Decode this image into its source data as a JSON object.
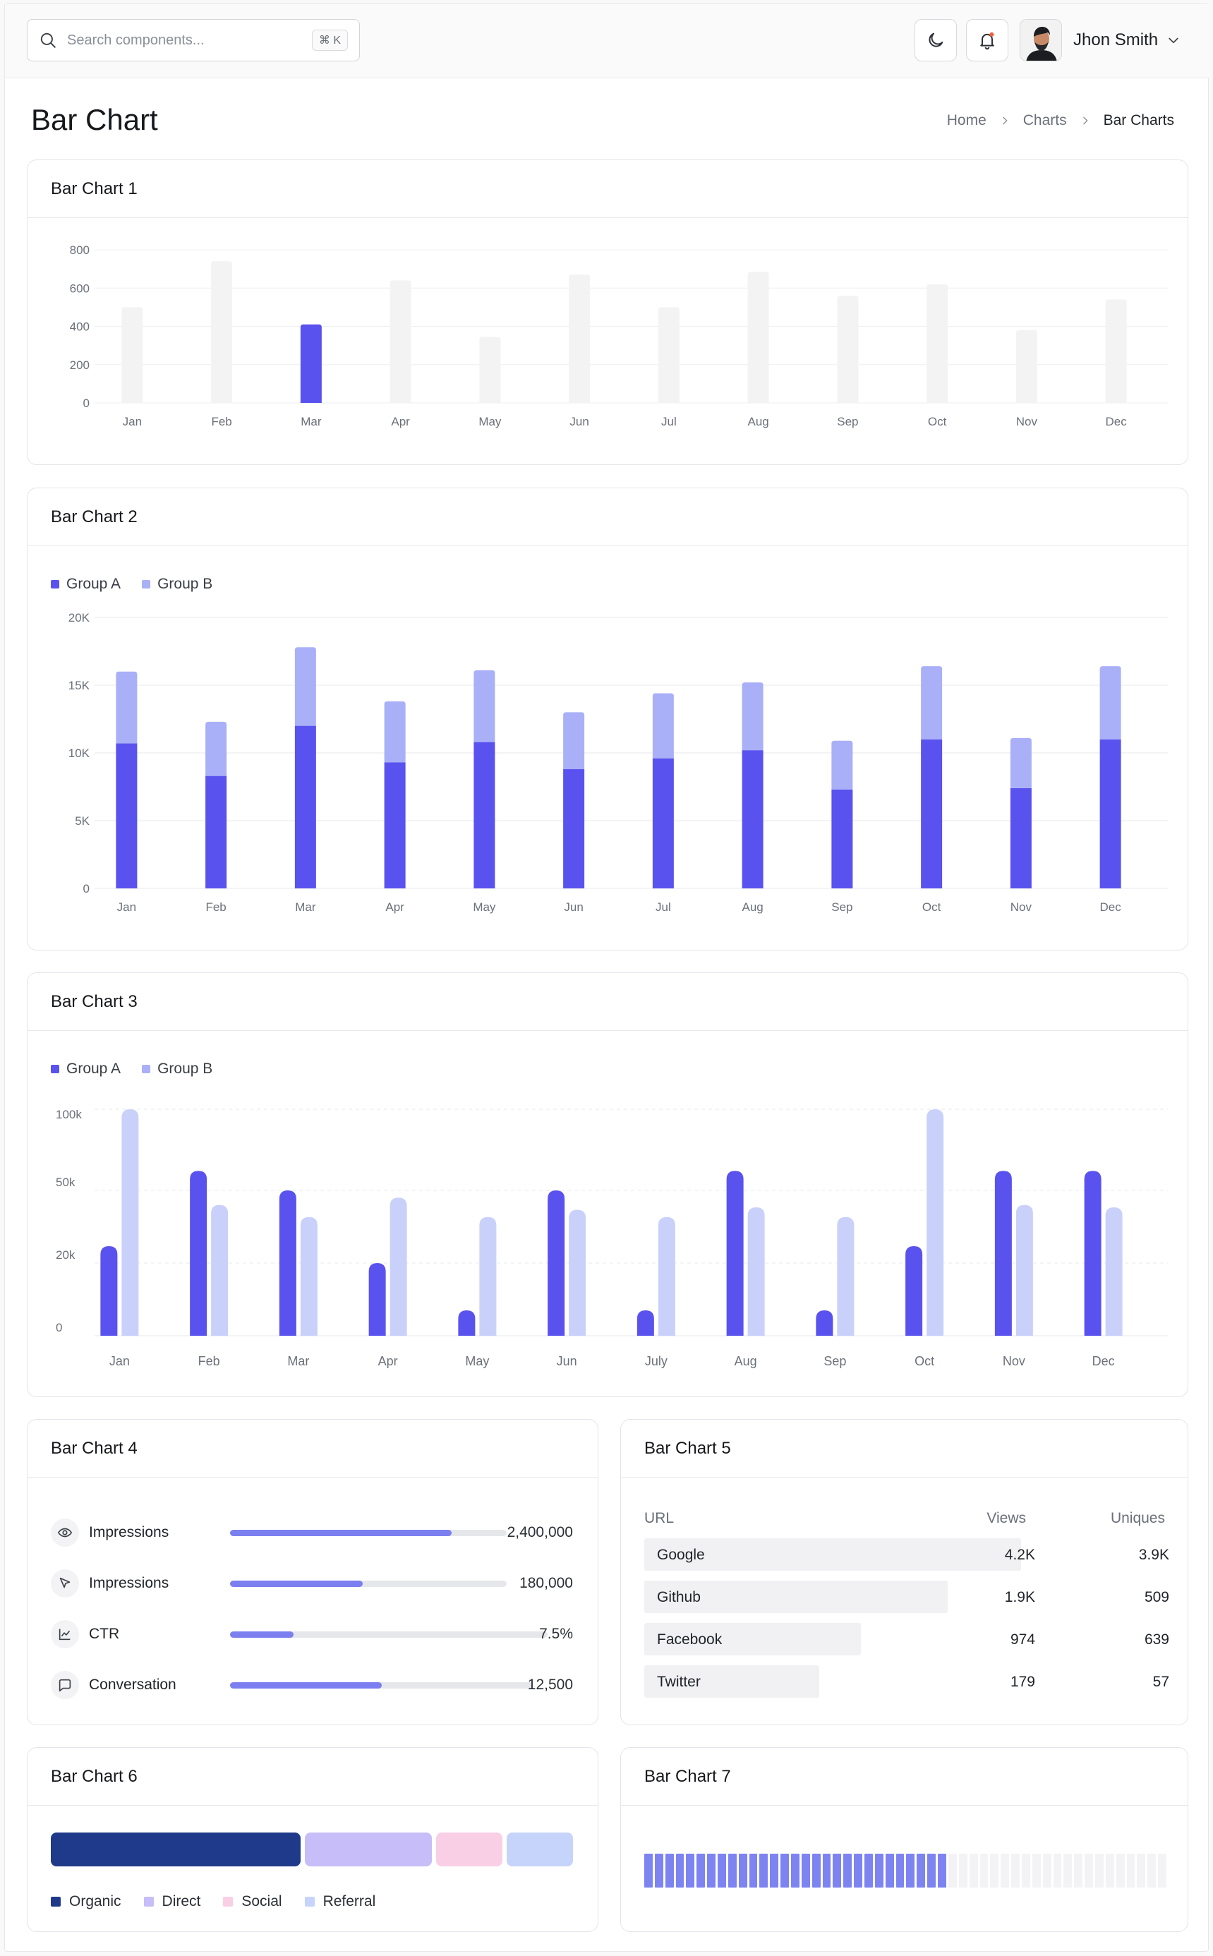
{
  "colors": {
    "primary": "#5a52ee",
    "light": "#a9b0f8",
    "lighter": "#c9d1fb",
    "muted": "#f3f3f4",
    "navy": "#1f3a8a",
    "lavender": "#c7bdf8",
    "pink": "#f9cfe6",
    "sky": "#c6d4fb"
  },
  "header": {
    "search_placeholder": "Search components...",
    "search_shortcut": "⌘ K",
    "theme_icon": "moon-icon",
    "notification_icon": "bell-icon",
    "user_name": "Jhon Smith"
  },
  "page": {
    "title": "Bar Chart"
  },
  "breadcrumb": {
    "home": "Home",
    "charts": "Charts",
    "current": "Bar Charts"
  },
  "cards": {
    "chart1": {
      "title": "Bar Chart 1"
    },
    "chart2": {
      "title": "Bar Chart 2"
    },
    "chart3": {
      "title": "Bar Chart 3"
    },
    "chart4": {
      "title": "Bar Chart 4"
    },
    "chart5": {
      "title": "Bar Chart 5"
    },
    "chart6": {
      "title": "Bar Chart 6"
    },
    "chart7": {
      "title": "Bar Chart 7"
    }
  },
  "chart_data": [
    {
      "id": "chart1",
      "type": "bar",
      "title": "Bar Chart 1",
      "categories": [
        "Jan",
        "Feb",
        "Mar",
        "Apr",
        "May",
        "Jun",
        "Jul",
        "Aug",
        "Sep",
        "Oct",
        "Nov",
        "Dec"
      ],
      "values": [
        500,
        740,
        410,
        640,
        345,
        670,
        500,
        685,
        560,
        620,
        380,
        540
      ],
      "highlight_index": 2,
      "yticks": [
        "0",
        "200",
        "400",
        "600",
        "800"
      ],
      "ylim": [
        0,
        800
      ]
    },
    {
      "id": "chart2",
      "type": "bar",
      "title": "Bar Chart 2",
      "stacked": true,
      "categories": [
        "Jan",
        "Feb",
        "Mar",
        "Apr",
        "May",
        "Jun",
        "Jul",
        "Aug",
        "Sep",
        "Oct",
        "Nov",
        "Dec"
      ],
      "series": [
        {
          "name": "Group A",
          "values": [
            10700,
            8300,
            12000,
            9300,
            10800,
            8800,
            9600,
            10200,
            7300,
            11000,
            7400,
            11000
          ]
        },
        {
          "name": "Group B",
          "values": [
            5300,
            4000,
            5800,
            4500,
            5300,
            4200,
            4800,
            5000,
            3600,
            5400,
            3700,
            5400
          ]
        }
      ],
      "yticks": [
        "0",
        "5K",
        "10K",
        "15K",
        "20K"
      ],
      "ylim": [
        0,
        20000
      ]
    },
    {
      "id": "chart3",
      "type": "bar",
      "title": "Bar Chart 3",
      "categories": [
        "Jan",
        "Feb",
        "Mar",
        "Apr",
        "May",
        "Jun",
        "July",
        "Aug",
        "Sep",
        "Oct",
        "Nov",
        "Dec"
      ],
      "series": [
        {
          "name": "Group A",
          "values": [
            27,
            62,
            50,
            20,
            7,
            50,
            7,
            62,
            7,
            27,
            62,
            62
          ]
        },
        {
          "name": "Group B",
          "values": [
            100,
            44,
            39,
            47,
            39,
            42,
            39,
            43,
            39,
            100,
            44,
            43
          ]
        }
      ],
      "yticks": [
        "0",
        "20k",
        "50k",
        "100k"
      ],
      "ylim": [
        0,
        100
      ]
    }
  ],
  "chart4": {
    "rows": [
      {
        "icon": "eye-icon",
        "label": "Impressions",
        "value": "2,400,000",
        "fraction": 0.8
      },
      {
        "icon": "cursor-icon",
        "label": "Impressions",
        "value": "180,000",
        "fraction": 0.48
      },
      {
        "icon": "trend-icon",
        "label": "CTR",
        "value": "7.5%",
        "fraction": 0.2
      },
      {
        "icon": "chat-icon",
        "label": "Conversation",
        "value": "12,500",
        "fraction": 0.5
      }
    ]
  },
  "chart5": {
    "headers": {
      "url": "URL",
      "views": "Views",
      "uniques": "Uniques"
    },
    "rows": [
      {
        "name": "Google",
        "views": "4.2K",
        "uniques": "3.9K",
        "fraction": 1.0
      },
      {
        "name": "Github",
        "views": "1.9K",
        "uniques": "509",
        "fraction": 0.805
      },
      {
        "name": "Facebook",
        "views": "974",
        "uniques": "639",
        "fraction": 0.575
      },
      {
        "name": "Twitter",
        "views": "179",
        "uniques": "57",
        "fraction": 0.465
      }
    ]
  },
  "chart6": {
    "segments": [
      {
        "name": "Organic",
        "share": 0.49,
        "color": "#1f3a8a"
      },
      {
        "name": "Direct",
        "share": 0.25,
        "color": "#c7bdf8"
      },
      {
        "name": "Social",
        "share": 0.13,
        "color": "#f9cfe6"
      },
      {
        "name": "Referral",
        "share": 0.13,
        "color": "#c6d4fb"
      }
    ]
  },
  "chart7": {
    "total": 50,
    "filled": 29
  }
}
